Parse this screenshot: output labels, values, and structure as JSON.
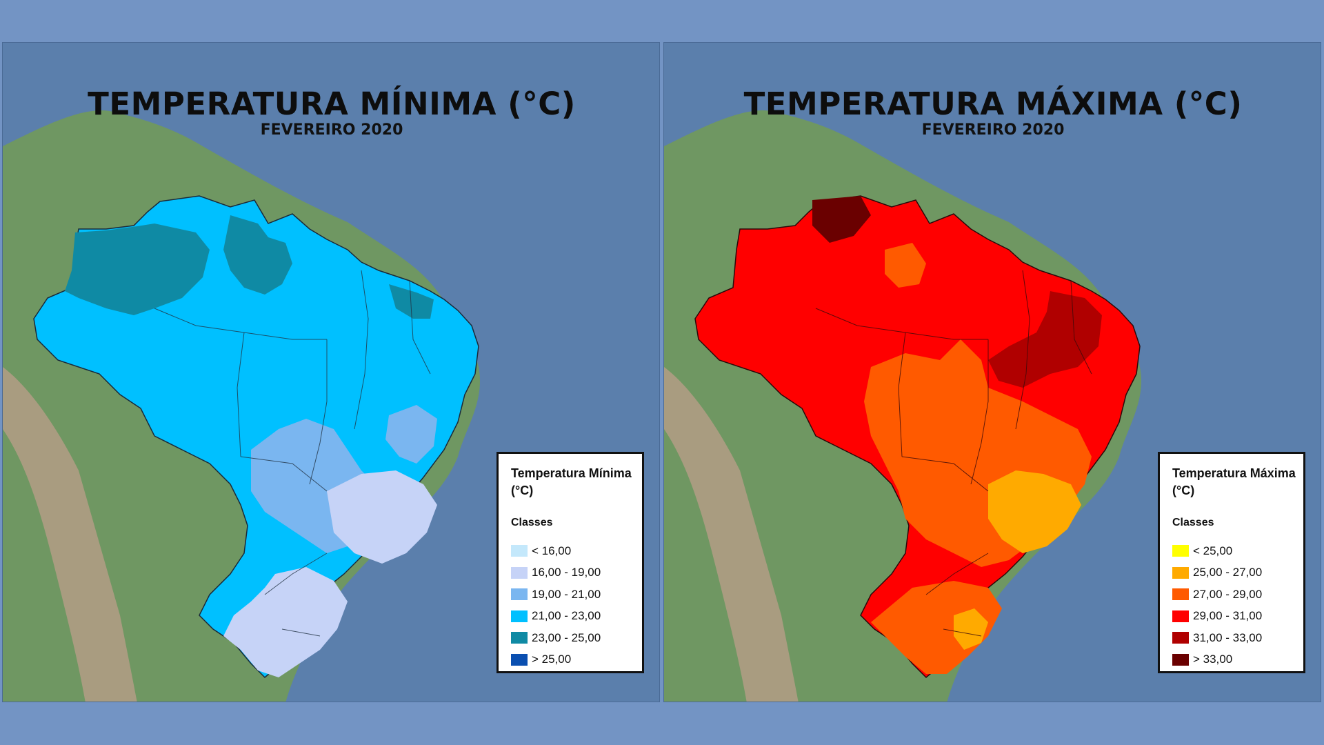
{
  "min_map": {
    "title": "TEMPERATURA MÍNIMA (°C)",
    "subtitle": "FEVEREIRO 2020",
    "legend": {
      "title": "Temperatura Mínima (°C)",
      "classes_label": "Classes",
      "items": [
        {
          "label": "< 16,00",
          "color": "#c4e8fb"
        },
        {
          "label": "16,00 - 19,00",
          "color": "#c6d3f7"
        },
        {
          "label": "19,00 - 21,00",
          "color": "#7ab6f0"
        },
        {
          "label": "21,00 - 23,00",
          "color": "#00c0ff"
        },
        {
          "label": "23,00 - 25,00",
          "color": "#0f8aa4"
        },
        {
          "label": "> 25,00",
          "color": "#0a4fb0"
        }
      ]
    }
  },
  "max_map": {
    "title": "TEMPERATURA MÁXIMA (°C)",
    "subtitle": "FEVEREIRO 2020",
    "legend": {
      "title": "Temperatura Máxima (°C)",
      "classes_label": "Classes",
      "items": [
        {
          "label": "< 25,00",
          "color": "#ffff00"
        },
        {
          "label": "25,00 - 27,00",
          "color": "#ffaa00"
        },
        {
          "label": "27,00 - 29,00",
          "color": "#ff5a00"
        },
        {
          "label": "29,00 - 31,00",
          "color": "#ff0000"
        },
        {
          "label": "31,00 - 33,00",
          "color": "#b00000"
        },
        {
          "label": "> 33,00",
          "color": "#6a0000"
        }
      ]
    }
  },
  "colors": {
    "ocean": "#5d81ad",
    "land": "#6e9461",
    "highland": "#a79a7e",
    "background": "#7394c4"
  }
}
